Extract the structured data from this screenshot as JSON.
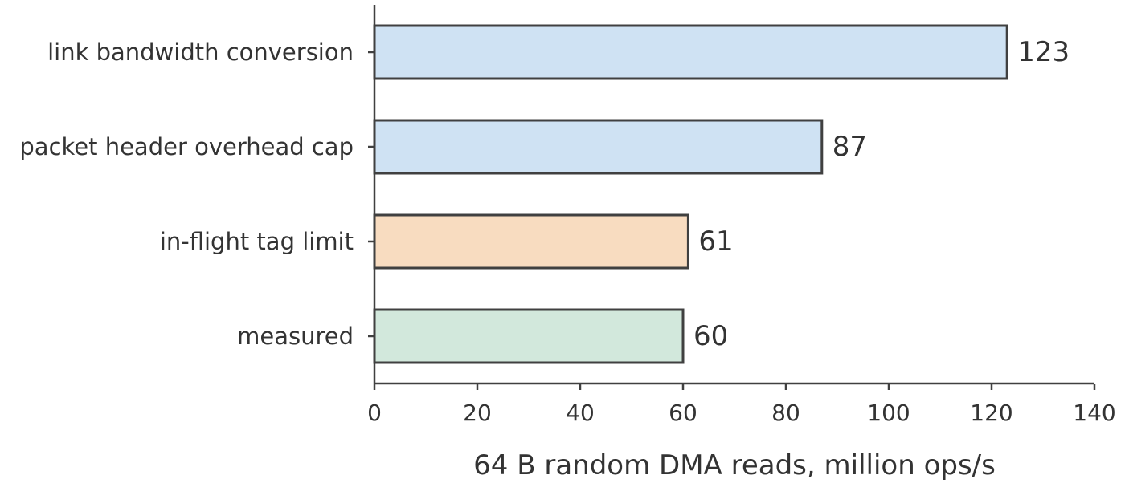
{
  "chart_data": {
    "type": "bar",
    "orientation": "horizontal",
    "categories": [
      "link bandwidth conversion",
      "packet header overhead cap",
      "in-flight tag limit",
      "measured"
    ],
    "values": [
      123,
      87,
      61,
      60
    ],
    "value_labels": [
      "123",
      "87",
      "61",
      "60"
    ],
    "bar_colors": [
      "#cfe2f3",
      "#cfe2f3",
      "#f8dcc0",
      "#d2e8dc"
    ],
    "bar_edge_color": "#404040",
    "xlabel": "64 B random DMA reads, million ops/s",
    "xlim": [
      0,
      140
    ],
    "xticks": [
      0,
      20,
      40,
      60,
      80,
      100,
      120,
      140
    ],
    "xtick_labels": [
      "0",
      "20",
      "40",
      "60",
      "80",
      "100",
      "120",
      "140"
    ],
    "grid": false,
    "legend": "none"
  }
}
